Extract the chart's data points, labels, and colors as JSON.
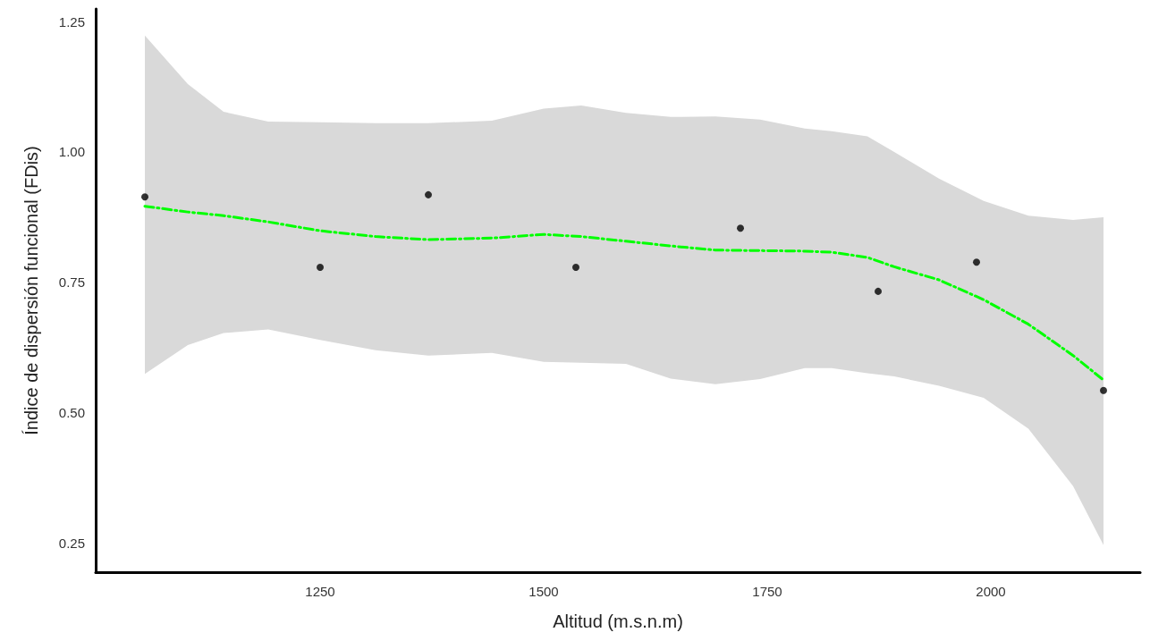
{
  "chart_data": {
    "type": "scatter",
    "xlabel": "Altitud (m.s.n.m)",
    "ylabel": "Índice de dispersión funcional (FDis)",
    "xlim": [
      999,
      2167
    ],
    "ylim": [
      0.195,
      1.274
    ],
    "xticks": [
      1250,
      1500,
      1750,
      2000
    ],
    "yticks": [
      {
        "value": 0.25,
        "label": "0.25"
      },
      {
        "value": 0.5,
        "label": "0.50"
      },
      {
        "value": 0.75,
        "label": "0.75"
      },
      {
        "value": 1.0,
        "label": "1.00"
      },
      {
        "value": 1.25,
        "label": "1.25"
      }
    ],
    "grid": false,
    "series": [
      {
        "type": "line",
        "color": "#00ff00",
        "line_style": "dashed",
        "marker": "none",
        "x": [
          1054,
          1102,
          1142,
          1192,
          1250,
          1312,
          1371,
          1442,
          1500,
          1542,
          1592,
          1642,
          1692,
          1742,
          1792,
          1822,
          1862,
          1892,
          1942,
          1992,
          2042,
          2092,
          2126
        ],
        "values": [
          0.896,
          0.885,
          0.878,
          0.866,
          0.849,
          0.838,
          0.832,
          0.835,
          0.842,
          0.838,
          0.829,
          0.82,
          0.812,
          0.811,
          0.81,
          0.808,
          0.798,
          0.78,
          0.755,
          0.717,
          0.67,
          0.61,
          0.563
        ],
        "upper": [
          1.223,
          1.13,
          1.077,
          1.058,
          1.057,
          1.055,
          1.055,
          1.06,
          1.083,
          1.089,
          1.075,
          1.067,
          1.068,
          1.062,
          1.045,
          1.04,
          1.03,
          1.0,
          0.949,
          0.906,
          0.878,
          0.87,
          0.875
        ],
        "lower": [
          0.575,
          0.63,
          0.653,
          0.66,
          0.64,
          0.62,
          0.61,
          0.615,
          0.598,
          0.596,
          0.594,
          0.566,
          0.555,
          0.565,
          0.586,
          0.586,
          0.576,
          0.57,
          0.552,
          0.529,
          0.47,
          0.36,
          0.247
        ]
      },
      {
        "color": "#000000",
        "marker": "circle",
        "x": [
          1054,
          1250,
          1371,
          1536,
          1720,
          1874,
          1984,
          2126
        ],
        "values": [
          0.914,
          0.779,
          0.918,
          0.779,
          0.854,
          0.733,
          0.789,
          0.543
        ]
      }
    ]
  }
}
